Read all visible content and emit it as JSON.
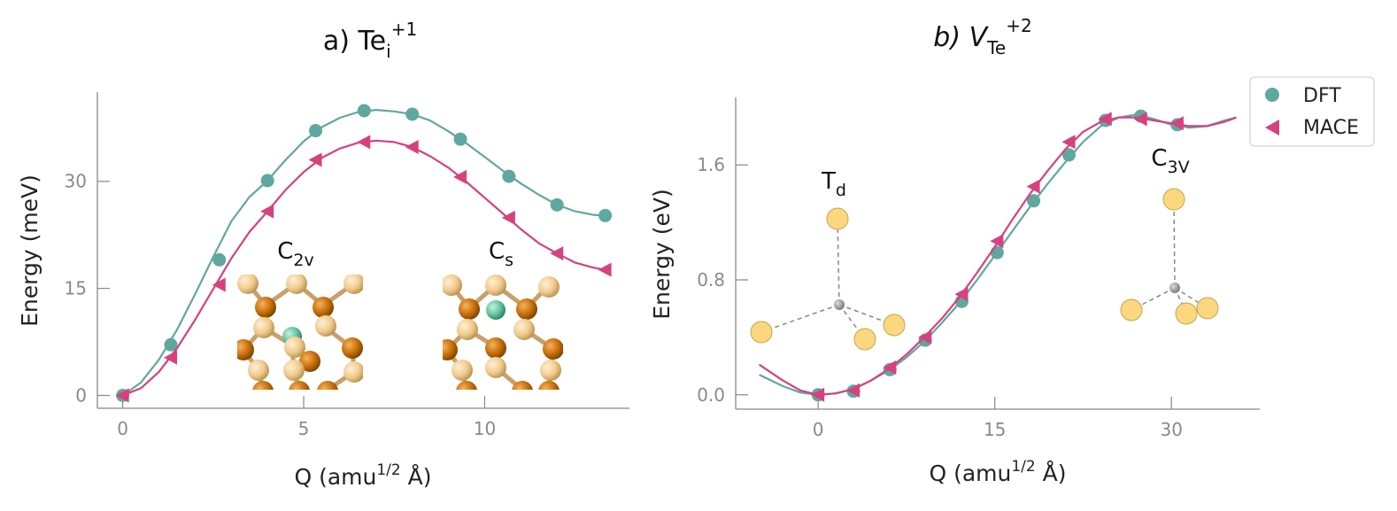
{
  "colors": {
    "dft": "#5fa8a0",
    "mace": "#d6417e",
    "axis": "#888888",
    "te_light": "#f0c98a",
    "te_dark": "#c46c08",
    "interstitial": "#5cc19c",
    "td_atom": "#fcd77f",
    "center": "#999999"
  },
  "legend": {
    "dft": "DFT",
    "mace": "MACE"
  },
  "chart_data": [
    {
      "type": "line",
      "title": "a) Te",
      "title_sub": "i",
      "title_sup": "+1",
      "xlabel": "Q (amu",
      "xlabel_sup": "1/2",
      "xlabel_tail": " Å)",
      "ylabel": "Energy (meV)",
      "xlim": [
        -0.7,
        14.0
      ],
      "ylim": [
        -1.8,
        42.5
      ],
      "xticks": [
        0,
        5,
        10
      ],
      "xtick_labels": [
        "0",
        "5",
        "10"
      ],
      "yticks": [
        0,
        15,
        30
      ],
      "ytick_labels": [
        "0",
        "15",
        "30"
      ],
      "series": [
        {
          "name": "DFT",
          "marker": "circle",
          "x": [
            0,
            1.33,
            2.67,
            4.0,
            5.33,
            6.67,
            8.0,
            9.33,
            10.67,
            12.0,
            13.33
          ],
          "y": [
            0,
            7.1,
            19.0,
            30.1,
            37.1,
            39.9,
            39.4,
            35.9,
            30.7,
            26.7,
            25.2
          ],
          "curve_x": [
            0,
            0.5,
            1.0,
            1.5,
            2.0,
            2.5,
            3.0,
            3.5,
            4.0,
            4.5,
            5.0,
            5.5,
            6.0,
            6.5,
            7.0,
            7.5,
            8.0,
            8.5,
            9.0,
            9.5,
            10.0,
            10.5,
            11.0,
            11.5,
            12.0,
            12.5,
            13.0,
            13.33
          ],
          "curve_y": [
            0,
            1.8,
            5.0,
            9.2,
            14.2,
            19.4,
            24.4,
            27.8,
            30.1,
            33.0,
            35.6,
            37.6,
            38.9,
            39.7,
            40.0,
            39.8,
            39.4,
            38.5,
            37.0,
            35.3,
            33.4,
            31.5,
            29.7,
            28.1,
            26.7,
            25.8,
            25.3,
            25.2
          ]
        },
        {
          "name": "MACE",
          "marker": "triangle-left",
          "x": [
            0,
            1.33,
            2.67,
            4.0,
            5.33,
            6.67,
            8.0,
            9.33,
            10.67,
            12.0,
            13.33
          ],
          "y": [
            0,
            5.3,
            15.5,
            25.8,
            33.0,
            35.5,
            34.8,
            30.6,
            24.9,
            19.9,
            17.6
          ],
          "curve_x": [
            0,
            0.5,
            1.0,
            1.5,
            2.0,
            2.5,
            3.0,
            3.5,
            4.0,
            4.5,
            5.0,
            5.5,
            6.0,
            6.5,
            7.0,
            7.5,
            8.0,
            8.5,
            9.0,
            9.5,
            10.0,
            10.5,
            11.0,
            11.5,
            12.0,
            12.5,
            13.0,
            13.33
          ],
          "curve_y": [
            0,
            1.0,
            3.3,
            6.6,
            10.6,
            14.9,
            19.2,
            22.9,
            25.8,
            28.8,
            31.3,
            33.3,
            34.6,
            35.4,
            35.7,
            35.5,
            34.8,
            33.5,
            31.9,
            29.9,
            27.7,
            25.5,
            23.3,
            21.3,
            19.9,
            18.6,
            17.9,
            17.6
          ]
        }
      ],
      "annotations": [
        {
          "text": "C",
          "sub": "2v"
        },
        {
          "text": "C",
          "sub": "s"
        }
      ]
    },
    {
      "type": "line",
      "title": "b) V",
      "title_sub": "Te",
      "title_sup": "+2",
      "xlabel": "Q (amu",
      "xlabel_sup": "1/2",
      "xlabel_tail": " Å)",
      "ylabel": "Energy (eV)",
      "xlim": [
        -7.0,
        37.5
      ],
      "ylim": [
        -0.1,
        2.07
      ],
      "xticks": [
        0,
        15,
        30
      ],
      "xtick_labels": [
        "0",
        "15",
        "30"
      ],
      "yticks": [
        0.0,
        0.8,
        1.6
      ],
      "ytick_labels": [
        "0.0",
        "0.8",
        "1.6"
      ],
      "series": [
        {
          "name": "DFT",
          "marker": "circle",
          "x": [
            0,
            3.0,
            6.1,
            9.1,
            12.2,
            15.2,
            18.3,
            21.3,
            24.4,
            27.4,
            30.5
          ],
          "y": [
            0.0,
            0.025,
            0.175,
            0.38,
            0.65,
            0.99,
            1.35,
            1.67,
            1.91,
            1.94,
            1.88
          ],
          "curve_x": [
            -5.0,
            -3.0,
            -1.5,
            0,
            1.5,
            3.0,
            4.5,
            6.0,
            7.5,
            9.0,
            10.5,
            12.0,
            13.5,
            15.0,
            16.5,
            18.0,
            19.5,
            21.0,
            22.5,
            24.0,
            25.5,
            27.0,
            28.5,
            30.0,
            31.5,
            33.0,
            34.5,
            35.5
          ],
          "curve_y": [
            0.14,
            0.06,
            0.015,
            0.0,
            0.01,
            0.04,
            0.1,
            0.17,
            0.26,
            0.37,
            0.5,
            0.64,
            0.8,
            0.97,
            1.14,
            1.31,
            1.47,
            1.62,
            1.76,
            1.87,
            1.93,
            1.95,
            1.92,
            1.88,
            1.86,
            1.87,
            1.91,
            1.93
          ]
        },
        {
          "name": "MACE",
          "marker": "triangle-left",
          "x": [
            0,
            3.0,
            6.1,
            9.1,
            12.2,
            15.2,
            18.3,
            21.3,
            24.4,
            27.4,
            30.5
          ],
          "y": [
            0.0,
            0.03,
            0.19,
            0.4,
            0.7,
            1.07,
            1.45,
            1.76,
            1.92,
            1.92,
            1.89
          ],
          "curve_x": [
            -5.0,
            -3.0,
            -1.5,
            0,
            1.5,
            3.0,
            4.5,
            6.0,
            7.5,
            9.0,
            10.5,
            12.0,
            13.5,
            15.0,
            16.5,
            18.0,
            19.5,
            21.0,
            22.5,
            24.0,
            25.5,
            27.0,
            28.5,
            30.0,
            31.5,
            33.0,
            34.5,
            35.5
          ],
          "curve_y": [
            0.21,
            0.1,
            0.03,
            0.0,
            0.01,
            0.04,
            0.1,
            0.18,
            0.28,
            0.4,
            0.53,
            0.68,
            0.85,
            1.03,
            1.22,
            1.4,
            1.56,
            1.71,
            1.83,
            1.9,
            1.93,
            1.93,
            1.91,
            1.89,
            1.87,
            1.87,
            1.9,
            1.93
          ]
        }
      ],
      "annotations": [
        {
          "text": "T",
          "sub": "d"
        },
        {
          "text": "C",
          "sub": "3V"
        }
      ]
    }
  ]
}
